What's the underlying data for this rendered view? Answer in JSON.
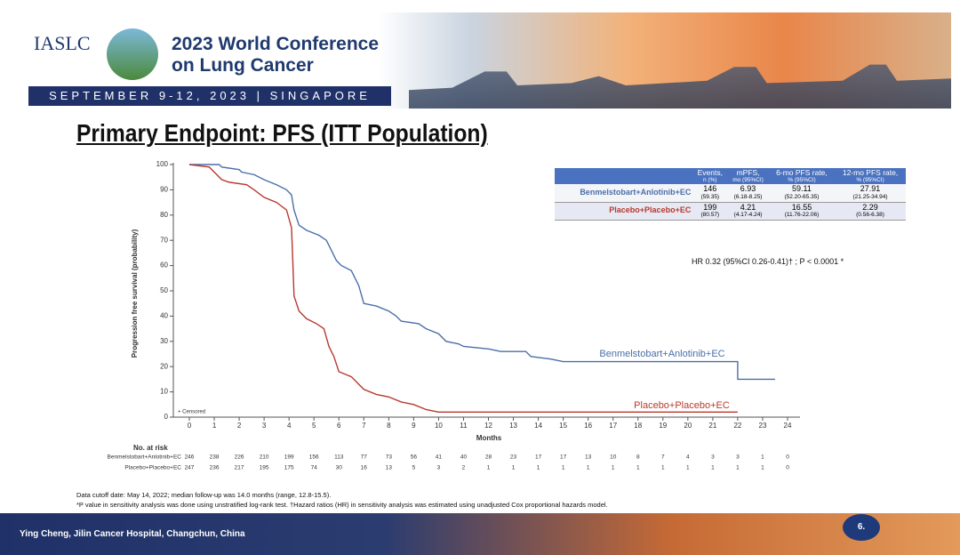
{
  "header": {
    "org": "IASLC",
    "conference": [
      "2023 World Conference",
      "on Lung Cancer"
    ],
    "dates": "SEPTEMBER 9-12, 2023 | SINGAPORE"
  },
  "slide_title": "Primary Endpoint: PFS (ITT Population)",
  "chart_data": {
    "type": "line",
    "y_label": "Progression free survival (probability)",
    "x_label": "Months",
    "censor_note": "+ Censored",
    "xlim": [
      0,
      24
    ],
    "xticks": [
      0,
      1,
      2,
      3,
      4,
      5,
      6,
      7,
      8,
      9,
      10,
      11,
      12,
      13,
      14,
      15,
      16,
      17,
      18,
      19,
      20,
      21,
      22,
      23,
      24
    ],
    "ylim": [
      0,
      100
    ],
    "yticks": [
      0,
      10,
      20,
      30,
      40,
      50,
      60,
      70,
      80,
      90,
      100
    ],
    "series": [
      {
        "name": "Benmelstobart+Anlotinib+EC",
        "color": "#4a6fa8",
        "x": [
          0,
          1.2,
          1.3,
          2,
          2.1,
          2.6,
          3,
          3.5,
          3.9,
          4.1,
          4.2,
          4.4,
          4.7,
          5.2,
          5.5,
          5.7,
          5.9,
          6.1,
          6.5,
          6.8,
          7,
          7.5,
          8,
          8.3,
          8.5,
          9.2,
          9.5,
          10,
          10.3,
          10.8,
          11,
          12,
          12.5,
          13.5,
          13.7,
          14.5,
          15,
          22,
          22,
          23.5
        ],
        "values": [
          100,
          100,
          99,
          98,
          97,
          96,
          94,
          92,
          90,
          88,
          82,
          76,
          74,
          72,
          70,
          66,
          62,
          60,
          58,
          52,
          45,
          44,
          42,
          40,
          38,
          37,
          35,
          33,
          30,
          29,
          28,
          27,
          26,
          26,
          24,
          23,
          22,
          22,
          15,
          15
        ]
      },
      {
        "name": "Placebo+Placebo+EC",
        "color": "#b8392e",
        "x": [
          0,
          0.8,
          1,
          1.3,
          1.6,
          2.3,
          2.6,
          3,
          3.5,
          3.9,
          4.1,
          4.15,
          4.2,
          4.4,
          4.7,
          5.1,
          5.4,
          5.6,
          5.8,
          6,
          6.5,
          6.8,
          7,
          7.5,
          8,
          8.5,
          9,
          9.5,
          10,
          22
        ],
        "values": [
          100,
          99,
          97,
          94,
          93,
          92,
          90,
          87,
          85,
          82,
          75,
          62,
          48,
          42,
          39,
          37,
          35,
          28,
          24,
          18,
          16,
          13,
          11,
          9,
          8,
          6,
          5,
          3,
          2,
          2
        ]
      }
    ]
  },
  "at_risk": {
    "title": "No. at risk",
    "rows": [
      {
        "label": "Benmelstobart+Anlotinib+EC",
        "counts": [
          "246",
          "238",
          "226",
          "210",
          "199",
          "156",
          "113",
          "77",
          "73",
          "56",
          "41",
          "40",
          "28",
          "23",
          "17",
          "17",
          "13",
          "10",
          "8",
          "7",
          "4",
          "3",
          "3",
          "1",
          "0"
        ]
      },
      {
        "label": "Placebo+Placebo+EC",
        "counts": [
          "247",
          "236",
          "217",
          "195",
          "175",
          "74",
          "30",
          "16",
          "13",
          "5",
          "3",
          "2",
          "1",
          "1",
          "1",
          "1",
          "1",
          "1",
          "1",
          "1",
          "1",
          "1",
          "1",
          "1",
          "0"
        ]
      }
    ]
  },
  "summary_table": {
    "headers": [
      [
        "Events,",
        "n (%)"
      ],
      [
        "mPFS,",
        "mo (95%CI)"
      ],
      [
        "6-mo PFS rate,",
        "% (95%CI)"
      ],
      [
        "12-mo PFS rate,",
        "% (95%CI)"
      ]
    ],
    "rows": [
      {
        "label": "Benmelstobart+Anlotinib+EC",
        "cells": [
          [
            "146",
            "(59.35)"
          ],
          [
            "6.93",
            "(6.18-8.25)"
          ],
          [
            "59.11",
            "(52.20-65.35)"
          ],
          [
            "27.91",
            "(21.25-34.94)"
          ]
        ]
      },
      {
        "label": "Placebo+Placebo+EC",
        "cells": [
          [
            "199",
            "(80.57)"
          ],
          [
            "4.21",
            "(4.17-4.24)"
          ],
          [
            "16.55",
            "(11.76-22.06)"
          ],
          [
            "2.29",
            "(0.56-6.38)"
          ]
        ]
      }
    ],
    "hr": "HR 0.32 (95%CI 0.26-0.41)† ; P < 0.0001 *"
  },
  "footnotes": [
    "Data cutoff date: May 14, 2022; median follow-up was 14.0 months (range, 12.8-15.5).",
    "*P value in sensitivity analysis was done using unstratified log-rank test. †Hazard ratios (HR) in sensitivity analysis was estimated using unadjusted Cox proportional hazards model."
  ],
  "footer": {
    "presenter": "Ying Cheng, Jilin Cancer Hospital, Changchun, China",
    "page": "6."
  }
}
